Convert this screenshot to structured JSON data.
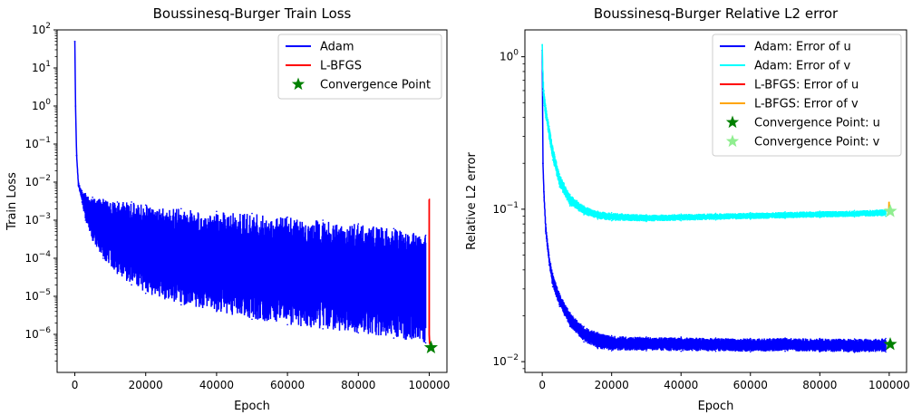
{
  "chart_data": [
    {
      "type": "line",
      "title": "Boussinesq-Burger Train Loss",
      "xlabel": "Epoch",
      "ylabel": "Train Loss",
      "xscale": "linear",
      "yscale": "log",
      "xlim": [
        -5000,
        105000
      ],
      "ylim": [
        1e-07,
        100.0
      ],
      "xticks": [
        0,
        20000,
        40000,
        60000,
        80000,
        100000
      ],
      "xtick_labels": [
        "0",
        "20000",
        "40000",
        "60000",
        "80000",
        "100000"
      ],
      "yticks": [
        {
          "value": 1e-06,
          "base": "10",
          "exp": "−6"
        },
        {
          "value": 1e-05,
          "base": "10",
          "exp": "−5"
        },
        {
          "value": 0.0001,
          "base": "10",
          "exp": "−4"
        },
        {
          "value": 0.001,
          "base": "10",
          "exp": "−3"
        },
        {
          "value": 0.01,
          "base": "10",
          "exp": "−2"
        },
        {
          "value": 0.1,
          "base": "10",
          "exp": "−1"
        },
        {
          "value": 1,
          "base": "10",
          "exp": "0"
        },
        {
          "value": 10,
          "base": "10",
          "exp": "1"
        },
        {
          "value": 100,
          "base": "10",
          "exp": "2"
        }
      ],
      "legend_position": "top-right",
      "series": [
        {
          "name": "Adam",
          "color": "#0000ff",
          "kind": "band",
          "x": [
            0,
            200,
            500,
            1000,
            2000,
            3000,
            5000,
            8000,
            12000,
            16000,
            20000,
            30000,
            40000,
            50000,
            60000,
            70000,
            80000,
            90000,
            99000
          ],
          "upper": [
            50,
            1.0,
            0.05,
            0.01,
            0.006,
            0.005,
            0.004,
            0.0035,
            0.003,
            0.003,
            0.0025,
            0.002,
            0.0017,
            0.0015,
            0.0012,
            0.001,
            0.0008,
            0.0006,
            0.0004
          ],
          "lower": [
            50,
            1.0,
            0.05,
            0.008,
            0.003,
            0.001,
            0.0003,
            0.0001,
            4e-05,
            2e-05,
            1.2e-05,
            6e-06,
            4e-06,
            2.5e-06,
            1.8e-06,
            1.4e-06,
            1.1e-06,
            8e-07,
            6e-07
          ]
        },
        {
          "name": "L-BFGS",
          "color": "#ff0000",
          "kind": "line",
          "x": [
            99900,
            100000,
            100000,
            100100,
            100500
          ],
          "y": [
            0.0035,
            0.0035,
            1e-06,
            6e-07,
            4.5e-07
          ]
        },
        {
          "name": "Convergence Point",
          "color": "#008000",
          "kind": "marker",
          "x": [
            100500
          ],
          "y": [
            4.5e-07
          ]
        }
      ]
    },
    {
      "type": "line",
      "title": "Boussinesq-Burger Relative L2 error",
      "xlabel": "Epoch",
      "ylabel": "Relative L2 error",
      "xscale": "linear",
      "yscale": "log",
      "xlim": [
        -5000,
        105000
      ],
      "ylim": [
        0.0085,
        1.5
      ],
      "xticks": [
        0,
        20000,
        40000,
        60000,
        80000,
        100000
      ],
      "xtick_labels": [
        "0",
        "20000",
        "40000",
        "60000",
        "80000",
        "100000"
      ],
      "yticks": [
        {
          "value": 0.01,
          "base": "10",
          "exp": "−2"
        },
        {
          "value": 0.1,
          "base": "10",
          "exp": "−1"
        },
        {
          "value": 1,
          "base": "10",
          "exp": "0"
        }
      ],
      "legend_position": "top-right",
      "series": [
        {
          "name": "Adam: Error of u",
          "color": "#0000ff",
          "kind": "band",
          "x": [
            0,
            200,
            500,
            1000,
            2000,
            3000,
            5000,
            8000,
            12000,
            16000,
            20000,
            30000,
            40000,
            50000,
            60000,
            70000,
            80000,
            90000,
            99000
          ],
          "upper": [
            1.1,
            0.2,
            0.13,
            0.08,
            0.05,
            0.038,
            0.028,
            0.021,
            0.017,
            0.0155,
            0.0148,
            0.0145,
            0.0145,
            0.0143,
            0.0142,
            0.0143,
            0.0142,
            0.0141,
            0.0142
          ],
          "lower": [
            1.1,
            0.2,
            0.12,
            0.07,
            0.043,
            0.031,
            0.023,
            0.017,
            0.0135,
            0.0122,
            0.0118,
            0.0118,
            0.0117,
            0.0117,
            0.0116,
            0.0117,
            0.0116,
            0.0115,
            0.0116
          ]
        },
        {
          "name": "Adam: Error of v",
          "color": "#00ffff",
          "kind": "band",
          "x": [
            0,
            200,
            500,
            1000,
            2000,
            3000,
            5000,
            8000,
            12000,
            16000,
            20000,
            30000,
            40000,
            50000,
            60000,
            70000,
            80000,
            90000,
            99000
          ],
          "upper": [
            1.2,
            0.8,
            0.6,
            0.48,
            0.35,
            0.26,
            0.17,
            0.125,
            0.105,
            0.097,
            0.095,
            0.092,
            0.093,
            0.094,
            0.095,
            0.096,
            0.097,
            0.098,
            0.1
          ],
          "lower": [
            1.2,
            0.6,
            0.48,
            0.4,
            0.29,
            0.21,
            0.14,
            0.105,
            0.092,
            0.086,
            0.084,
            0.083,
            0.084,
            0.085,
            0.086,
            0.087,
            0.088,
            0.089,
            0.09
          ]
        },
        {
          "name": "L-BFGS: Error of u",
          "color": "#ff0000",
          "kind": "line",
          "x": [
            99900,
            100000,
            100300
          ],
          "y": [
            0.0135,
            0.0133,
            0.013
          ]
        },
        {
          "name": "L-BFGS: Error of v",
          "color": "#ffa500",
          "kind": "line",
          "x": [
            99900,
            99950,
            100000,
            100300
          ],
          "y": [
            0.098,
            0.112,
            0.099,
            0.097
          ]
        },
        {
          "name": "Convergence Point: u",
          "color": "#008000",
          "kind": "marker",
          "x": [
            100300
          ],
          "y": [
            0.013
          ]
        },
        {
          "name": "Convergence Point: v",
          "color": "#90ee90",
          "kind": "marker",
          "x": [
            100300
          ],
          "y": [
            0.097
          ]
        }
      ]
    }
  ]
}
